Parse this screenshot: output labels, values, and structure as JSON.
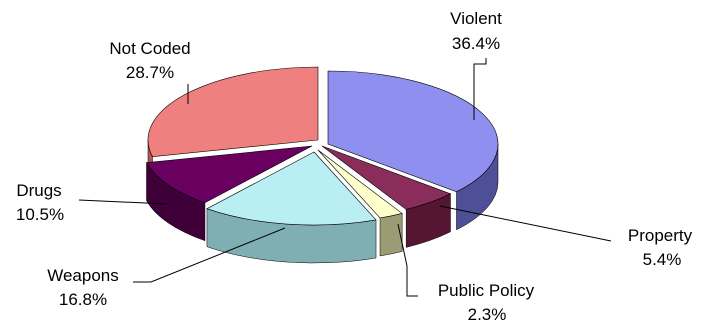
{
  "chart_data": {
    "type": "pie",
    "title": "",
    "style": "3d-exploded",
    "legend": "none",
    "slices": [
      {
        "name": "Violent",
        "percent_label": "36.4%",
        "value": 36.4,
        "color": "#8F8FEF",
        "side_color": "#4F4F97"
      },
      {
        "name": "Property",
        "percent_label": "5.4%",
        "value": 5.4,
        "color": "#8B2D5A",
        "side_color": "#541633"
      },
      {
        "name": "Public Policy",
        "percent_label": "2.3%",
        "value": 2.3,
        "color": "#FFFFCC",
        "side_color": "#9C9C74"
      },
      {
        "name": "Weapons",
        "percent_label": "16.8%",
        "value": 16.8,
        "color": "#B9EFF2",
        "side_color": "#7FAFB3"
      },
      {
        "name": "Drugs",
        "percent_label": "10.5%",
        "value": 10.5,
        "color": "#6A0060",
        "side_color": "#3F003A"
      },
      {
        "name": "Not Coded",
        "percent_label": "28.7%",
        "value": 28.7,
        "color": "#F08080",
        "side_color": "#B65656"
      }
    ]
  }
}
